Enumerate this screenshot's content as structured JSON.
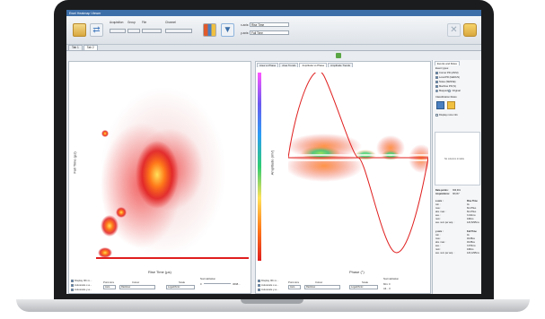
{
  "window": {
    "title": "Ewel Heatmap Viewer"
  },
  "toolbar": {
    "labels": {
      "acquisition": "Acquisition",
      "channel_group": "Group",
      "file": "File",
      "channel": "Channel",
      "xaxis": "x-axis:",
      "yaxis": "y-axis:"
    },
    "xaxis_value": "Rise Time",
    "yaxis_value": "Fall Time"
  },
  "tabs": [
    {
      "label": "Tab 1"
    },
    {
      "label": "Tab 2"
    }
  ],
  "left_plot": {
    "x_title": "Rise Time (µs)",
    "y_title": "Fall Time (µs)",
    "controls": {
      "display_gridlines": "Display 0th ro...",
      "autoscale_x": "Autoscale x-a...",
      "autoscale_y": "Autoscale y-a...",
      "point_size_label": "Point size",
      "point_size_value": "Auto",
      "colour_label": "Colour",
      "colour_value": "Rainbow",
      "scale_label": "Scale",
      "scale_value": "Logarithmic",
      "normalization_label": "Normalization",
      "norm_min": "0",
      "norm_max": "3698..."
    }
  },
  "right_plot": {
    "subtabs": [
      "Area vs Phase",
      "Area Trends",
      "Amplitude vs Phase",
      "Amplitude Trends"
    ],
    "x_title": "Phase (°)",
    "y_title": "Amplitude (mV)",
    "controls": {
      "display_gridlines": "Display 0th ro...",
      "autoscale_x": "Autoscale x-a...",
      "autoscale_y": "Autoscale y-a...",
      "point_size_label": "Point size",
      "point_size_value": "Auto",
      "colour_label": "Colour",
      "colour_value": "Rainbow",
      "scale_label": "Scale",
      "scale_value": "Logarithmic",
      "normalization_label": "Normalization",
      "norm_min": "Min: 0",
      "norm_max": "Ali... 0"
    }
  },
  "right_panel": {
    "tabs": [
      "Events and Rules"
    ],
    "event_types_label": "Event types:",
    "event_types": [
      {
        "label": "Corner PD (ANSI)",
        "checked": true
      },
      {
        "label": "Local PD (GENUS)",
        "checked": true
      },
      {
        "label": "Noise (SENSE)",
        "checked": true
      },
      {
        "label": "Machine PD (S)",
        "checked": true
      }
    ],
    "mode_mapped": "Mapped",
    "mode_original": "Original",
    "classification_label": "Classification Rules:",
    "display_more": "Display more info",
    "empty_table": "No columns in table",
    "data_points_label": "Data points:",
    "data_points_value": "366,901",
    "acquisitions_label": "Acquisitions:",
    "acquisitions_value": "38,037",
    "x_axis_label": "x-axis :",
    "x_axis_value": "Rise Time",
    "x_stats": [
      {
        "k": "min :",
        "v": "0s"
      },
      {
        "k": "max :",
        "v": "60.276us"
      },
      {
        "k": "abs. max :",
        "v": "60.276us"
      },
      {
        "k": "ave. :",
        "v": "3.041ms"
      },
      {
        "k": "num :",
        "v": "449ms"
      },
      {
        "k": "ave. sum per acq. :",
        "v": "120,5295ms"
      }
    ],
    "y_axis_label": "y-axis :",
    "y_axis_value": "Fall Time",
    "y_stats": [
      {
        "k": "min :",
        "v": "0s"
      },
      {
        "k": "max :",
        "v": "49.88us"
      },
      {
        "k": "abs. max :",
        "v": "49.88us"
      },
      {
        "k": "ave. :",
        "v": "3.874ms"
      },
      {
        "k": "num :",
        "v": "449ms"
      },
      {
        "k": "ave. sum per acq. :",
        "v": "120,1295ms"
      }
    ]
  }
}
